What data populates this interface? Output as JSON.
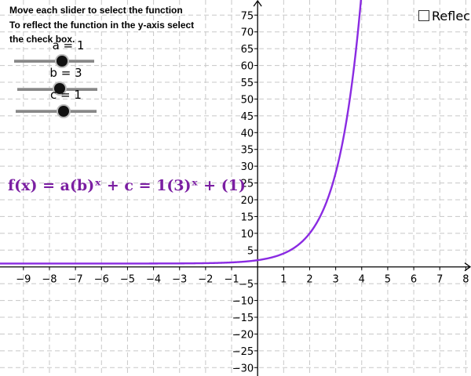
{
  "instructions": {
    "line1": "Move each slider  to select the function",
    "line2": "To reflect the function in the y-axis select",
    "line3": "the check box."
  },
  "sliders": [
    {
      "label": "a = 1",
      "value": 1
    },
    {
      "label": "b = 3",
      "value": 3
    },
    {
      "label": "c = 1",
      "value": 1
    }
  ],
  "reflect_checkbox": {
    "label": "Reflec",
    "checked": false
  },
  "formula": "f(x) = a(b)ˣ + c  = 1(3)ˣ + (1)",
  "colors": {
    "curve": "#8a2be2",
    "formula": "#7b1fa2",
    "grid": "#c8c8c8",
    "axis": "#000000"
  },
  "chart_data": {
    "type": "line",
    "function": "f(x) = a(b)^x + c",
    "params": {
      "a": 1,
      "b": 3,
      "c": 1
    },
    "xlim": [
      -9.9,
      8.2
    ],
    "ylim": [
      -32.5,
      79.5
    ],
    "x_tick_labels": [
      "−9",
      "−8",
      "−7",
      "−6",
      "−5",
      "−4",
      "−3",
      "−2",
      "−1",
      "1",
      "2",
      "3",
      "4",
      "5",
      "6",
      "7",
      "8"
    ],
    "y_tick_labels": [
      "75",
      "70",
      "65",
      "60",
      "55",
      "50",
      "45",
      "40",
      "35",
      "30",
      "25",
      "20",
      "15",
      "10",
      "5",
      "−5",
      "−10",
      "−15",
      "−20",
      "−25",
      "−30"
    ],
    "x_ticks": [
      -9,
      -8,
      -7,
      -6,
      -5,
      -4,
      -3,
      -2,
      -1,
      1,
      2,
      3,
      4,
      5,
      6,
      7,
      8
    ],
    "y_ticks": [
      75,
      70,
      65,
      60,
      55,
      50,
      45,
      40,
      35,
      30,
      25,
      20,
      15,
      10,
      5,
      -5,
      -10,
      -15,
      -20,
      -25,
      -30
    ],
    "grid": true,
    "series": [
      {
        "x": [
          -9.9,
          -8,
          -6,
          -4,
          -3,
          -2,
          -1,
          -0.5,
          0,
          0.5,
          1,
          1.5,
          2,
          2.5,
          3,
          3.25,
          3.5,
          3.75,
          3.95
        ],
        "y": [
          1,
          1,
          1,
          1.01,
          1.04,
          1.11,
          1.33,
          1.58,
          2,
          2.73,
          4,
          6.2,
          10,
          16.6,
          28,
          36.5,
          47.8,
          62.2,
          77.6
        ]
      }
    ]
  }
}
